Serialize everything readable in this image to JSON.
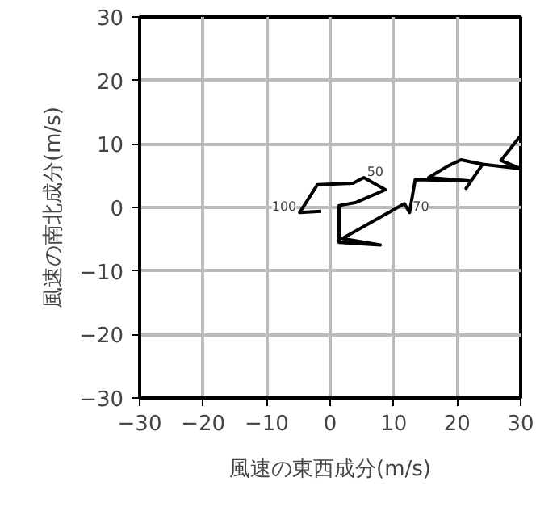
{
  "chart_data": {
    "type": "line",
    "xlabel": "風速の東西成分(m/s)",
    "ylabel": "風速の南北成分(m/s)",
    "x": [
      -1.4,
      -4.8,
      -2.0,
      3.6,
      5.3,
      8.7,
      4.1,
      1.4,
      1.4,
      7.9,
      1.9,
      11.7,
      12.5,
      13.4,
      21.9,
      15.5,
      18.5,
      20.6,
      24.0,
      21.4,
      24.0,
      30.0,
      26.9,
      30.0
    ],
    "series": [
      {
        "color": "#000000",
        "values": [
          -0.6,
          -0.8,
          3.6,
          3.8,
          4.7,
          2.8,
          0.8,
          0.3,
          -5.5,
          -5.9,
          -4.9,
          0.6,
          -0.8,
          4.4,
          4.2,
          4.7,
          6.5,
          7.5,
          6.8,
          3.0,
          6.8,
          6.1,
          7.4,
          11.3
        ]
      }
    ],
    "annotations": [
      {
        "text": "100",
        "x": -4.8,
        "y": -0.8
      },
      {
        "text": "50",
        "x": 5.3,
        "y": 4.7
      },
      {
        "text": "70",
        "x": 12.5,
        "y": -0.8
      }
    ],
    "xlim": [
      -30,
      30
    ],
    "ylim": [
      -30,
      30
    ],
    "xticks": [
      {
        "value": -30,
        "label": "−30"
      },
      {
        "value": -20,
        "label": "−20"
      },
      {
        "value": -10,
        "label": "−10"
      },
      0,
      10,
      20,
      30
    ],
    "yticks": [
      {
        "value": -30,
        "label": "−30"
      },
      {
        "value": -20,
        "label": "−20"
      },
      {
        "value": -10,
        "label": "−10"
      },
      0,
      10,
      20,
      30
    ],
    "grid": true,
    "marker": "none",
    "line_style": "solid"
  }
}
